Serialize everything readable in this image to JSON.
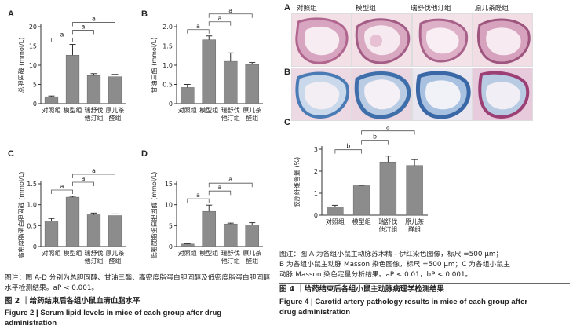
{
  "figure2": {
    "caption_note": "图注：图 A-D 分别为总胆固醇、甘油三酯、高密度脂蛋白胆固醇及低密度脂蛋白胆固醇水平检测结果。",
    "caption_p": "aP < 0.001。",
    "title_cn": "图 2 ｜给药结束后各组小鼠血清血脂水平",
    "title_en_line1": "Figure 2  |  Serum lipid levels in mice of each group after drug",
    "title_en_line2": "administration"
  },
  "figure4": {
    "row_a_label": "A",
    "row_b_label": "B",
    "columns": [
      "对照组",
      "模型组",
      "瑞舒伐他汀组",
      "原儿茶醛组"
    ],
    "caption_line1": "图注：图 A 为各组小鼠主动脉苏木精 - 伊红染色图像，标尺 =500 μm；",
    "caption_line2": "B 为各组小鼠主动脉 Masson 染色图像，标尺 =500 μm；C 为各组小鼠主",
    "caption_line3": "动脉 Masson 染色定量分析结果。aP < 0.01，bP < 0.001。",
    "title_cn": "图 4 ｜给药结束后各组小鼠主动脉病理学检测结果",
    "title_en_line1": "Figure 4  |  Carotid artery pathology results in mice of each group after",
    "title_en_line2": "drug administration"
  },
  "chart_data": [
    {
      "panel": "A",
      "type": "bar",
      "ylabel": "总胆固醇 (mmol/L)",
      "categories": [
        "对照组",
        "模型组",
        "瑞舒伐\n他汀组",
        "原儿茶\n醛组"
      ],
      "values": [
        1.8,
        12.6,
        7.3,
        7.0
      ],
      "errors": [
        0.2,
        2.8,
        0.5,
        0.6
      ],
      "ylim": [
        0,
        20
      ],
      "yticks": [
        0,
        5,
        10,
        15,
        20
      ],
      "sig": [
        {
          "from": 0,
          "to": 1,
          "label": "a"
        },
        {
          "from": 1,
          "to": 2,
          "label": "a"
        },
        {
          "from": 1,
          "to": 3,
          "label": "a"
        }
      ]
    },
    {
      "panel": "B",
      "type": "bar",
      "ylabel": "甘油三酯 (mmol/L)",
      "categories": [
        "对照组",
        "模型组",
        "瑞舒伐\n他汀组",
        "原儿茶\n醛组"
      ],
      "values": [
        0.42,
        1.66,
        1.1,
        1.02
      ],
      "errors": [
        0.08,
        0.1,
        0.22,
        0.05
      ],
      "ylim": [
        0,
        2.0
      ],
      "yticks": [
        "0",
        "0.5",
        "1.0",
        "1.5",
        "2.0"
      ],
      "sig": [
        {
          "from": 0,
          "to": 1,
          "label": "a"
        },
        {
          "from": 1,
          "to": 2,
          "label": "a"
        },
        {
          "from": 1,
          "to": 3,
          "label": "a"
        }
      ]
    },
    {
      "panel": "C",
      "type": "bar",
      "ylabel": "高密度脂蛋白胆固醇 (mmol/L)",
      "categories": [
        "对照组",
        "模型组",
        "瑞舒伐\n他汀组",
        "原儿茶\n醛组"
      ],
      "values": [
        0.61,
        1.18,
        0.76,
        0.74
      ],
      "errors": [
        0.06,
        0.02,
        0.04,
        0.04
      ],
      "ylim": [
        0,
        1.5
      ],
      "yticks": [
        "0",
        "0.5",
        "1.0",
        "1.5"
      ],
      "sig": [
        {
          "from": 0,
          "to": 1,
          "label": "a"
        },
        {
          "from": 1,
          "to": 2,
          "label": "a"
        },
        {
          "from": 1,
          "to": 3,
          "label": "a"
        }
      ]
    },
    {
      "panel": "D",
      "type": "bar",
      "ylabel": "低密度脂蛋白胆固醇 (mmol/L)",
      "categories": [
        "对照组",
        "模型组",
        "瑞舒伐\n他汀组",
        "原儿茶\n醛组"
      ],
      "values": [
        0.6,
        8.4,
        5.4,
        5.2
      ],
      "errors": [
        0.1,
        1.5,
        0.2,
        0.5
      ],
      "ylim": [
        0,
        15
      ],
      "yticks": [
        0,
        5,
        10,
        15
      ],
      "sig": [
        {
          "from": 0,
          "to": 1,
          "label": "a"
        },
        {
          "from": 1,
          "to": 2,
          "label": "a"
        },
        {
          "from": 1,
          "to": 3,
          "label": "a"
        }
      ]
    },
    {
      "panel": "C",
      "type": "bar",
      "ylabel": "胶原纤维含量 (%)",
      "categories": [
        "对照组",
        "模型组",
        "瑞舒伐\n他汀组",
        "原儿茶\n醛组"
      ],
      "values": [
        0.38,
        1.34,
        2.42,
        2.26
      ],
      "errors": [
        0.07,
        0.02,
        0.27,
        0.27
      ],
      "ylim": [
        0,
        3
      ],
      "yticks": [
        0,
        1,
        2,
        3
      ],
      "sig": [
        {
          "from": 0,
          "to": 1,
          "label": "b"
        },
        {
          "from": 1,
          "to": 2,
          "label": "b"
        },
        {
          "from": 1,
          "to": 3,
          "label": "a"
        }
      ]
    }
  ]
}
